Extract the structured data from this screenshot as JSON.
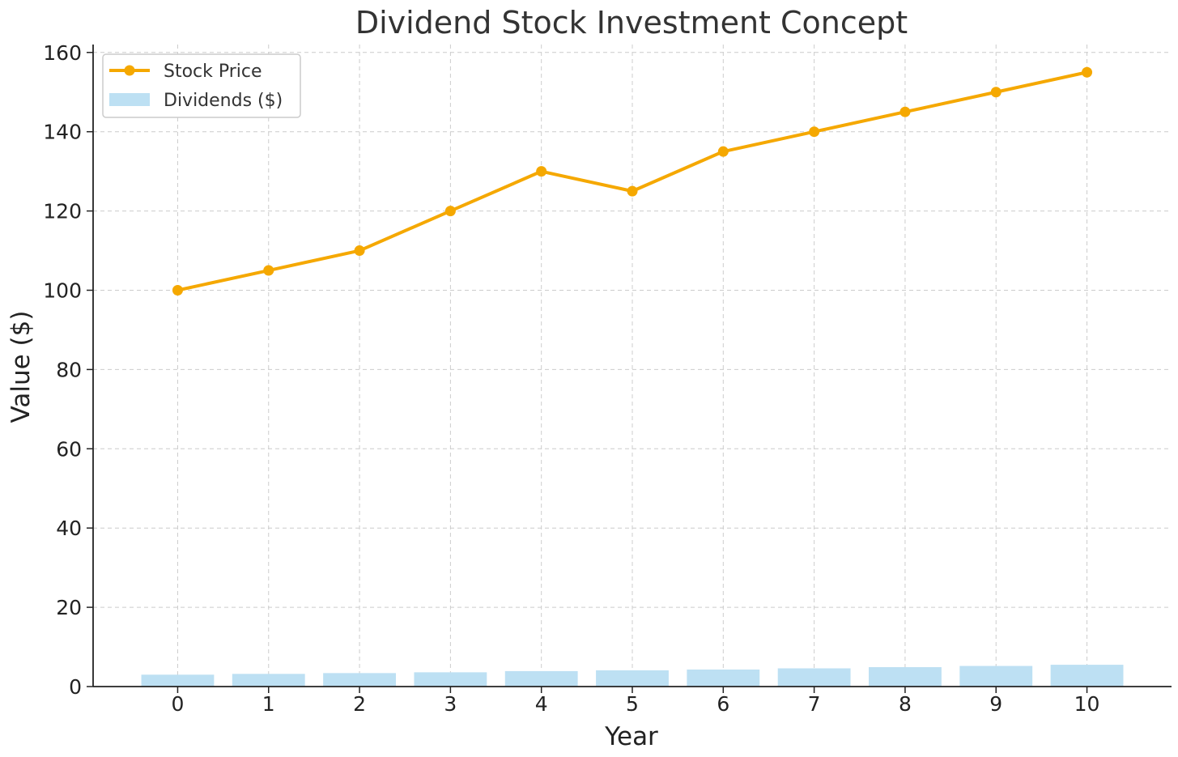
{
  "chart_data": {
    "type": "bar",
    "title": "Dividend Stock Investment Concept",
    "xlabel": "Year",
    "ylabel": "Value ($)",
    "categories": [
      "0",
      "1",
      "2",
      "3",
      "4",
      "5",
      "6",
      "7",
      "8",
      "9",
      "10"
    ],
    "x": [
      0,
      1,
      2,
      3,
      4,
      5,
      6,
      7,
      8,
      9,
      10
    ],
    "ylim": [
      0,
      162
    ],
    "yticks": [
      0,
      20,
      40,
      60,
      80,
      100,
      120,
      140,
      160
    ],
    "ytick_labels": [
      "0",
      "20",
      "40",
      "60",
      "80",
      "100",
      "120",
      "140",
      "160"
    ],
    "grid": true,
    "legend_position": "top-left",
    "series": [
      {
        "name": "Stock Price",
        "type": "line",
        "color": "#f5a800",
        "marker": "circle",
        "values": [
          100,
          105,
          110,
          120,
          130,
          125,
          135,
          140,
          145,
          150,
          155
        ]
      },
      {
        "name": "Dividends ($)",
        "type": "bar",
        "color": "#bde0f3",
        "values": [
          3.0,
          3.2,
          3.4,
          3.6,
          3.9,
          4.1,
          4.3,
          4.6,
          4.9,
          5.2,
          5.5
        ]
      }
    ]
  }
}
